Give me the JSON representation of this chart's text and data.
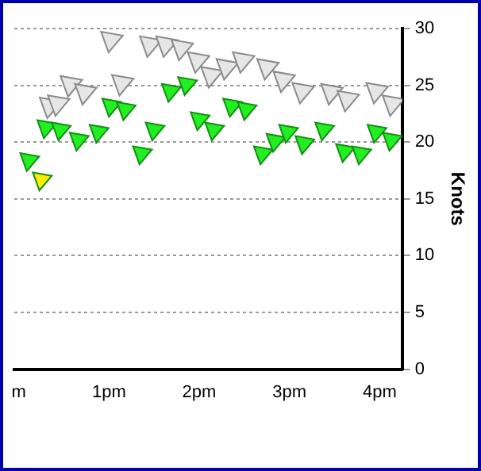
{
  "chart_data": {
    "type": "scatter",
    "ylabel": "Knots",
    "xlim": [
      -0.05,
      4.25
    ],
    "xticks": [
      {
        "value": 0,
        "label": "m"
      },
      {
        "value": 1,
        "label": "1pm"
      },
      {
        "value": 2,
        "label": "2pm"
      },
      {
        "value": 3,
        "label": "3pm"
      },
      {
        "value": 4,
        "label": "4pm"
      }
    ],
    "ylim": [
      0,
      30
    ],
    "yticks": [
      0,
      5,
      10,
      15,
      20,
      25,
      30
    ],
    "grid": "y",
    "legend": false,
    "marker": "triangle",
    "series": [
      {
        "color": "#e6e6e6",
        "x": [
          0.34,
          0.43,
          0.57,
          0.73,
          1.02,
          1.14,
          1.45,
          1.63,
          1.8,
          1.98,
          2.13,
          2.3,
          2.48,
          2.75,
          2.93,
          3.14,
          3.46,
          3.64,
          3.96,
          4.14
        ],
        "values": [
          23.2,
          23.4,
          25.1,
          24.4,
          29.0,
          25.2,
          28.6,
          28.6,
          28.3,
          27.2,
          25.9,
          26.6,
          27.2,
          26.6,
          25.5,
          24.5,
          24.4,
          23.8,
          24.5,
          23.4
        ]
      },
      {
        "color": "#22ee22",
        "colors": [
          "#22ee22",
          "#ffee00",
          "#22ee22",
          "#22ee22",
          "#22ee22",
          "#22ee22",
          "#22ee22",
          "#22ee22",
          "#22ee22",
          "#22ee22",
          "#22ee22",
          "#22ee22",
          "#22ee22",
          "#22ee22",
          "#22ee22",
          "#22ee22",
          "#22ee22",
          "#22ee22",
          "#22ee22",
          "#22ee22",
          "#22ee22",
          "#22ee22",
          "#22ee22",
          "#22ee22",
          "#22ee22"
        ],
        "x": [
          0.11,
          0.25,
          0.3,
          0.46,
          0.66,
          0.88,
          1.02,
          1.18,
          1.36,
          1.5,
          1.68,
          1.86,
          2.0,
          2.16,
          2.36,
          2.52,
          2.7,
          2.84,
          2.98,
          3.16,
          3.38,
          3.61,
          3.79,
          3.96,
          4.13
        ],
        "values": [
          18.4,
          16.7,
          21.3,
          21.1,
          20.2,
          20.9,
          23.2,
          22.9,
          19.0,
          21.1,
          24.5,
          25.1,
          22.0,
          21.1,
          23.2,
          22.9,
          19.0,
          20.1,
          20.9,
          19.9,
          21.1,
          19.2,
          19.0,
          20.9,
          20.2
        ]
      }
    ]
  }
}
